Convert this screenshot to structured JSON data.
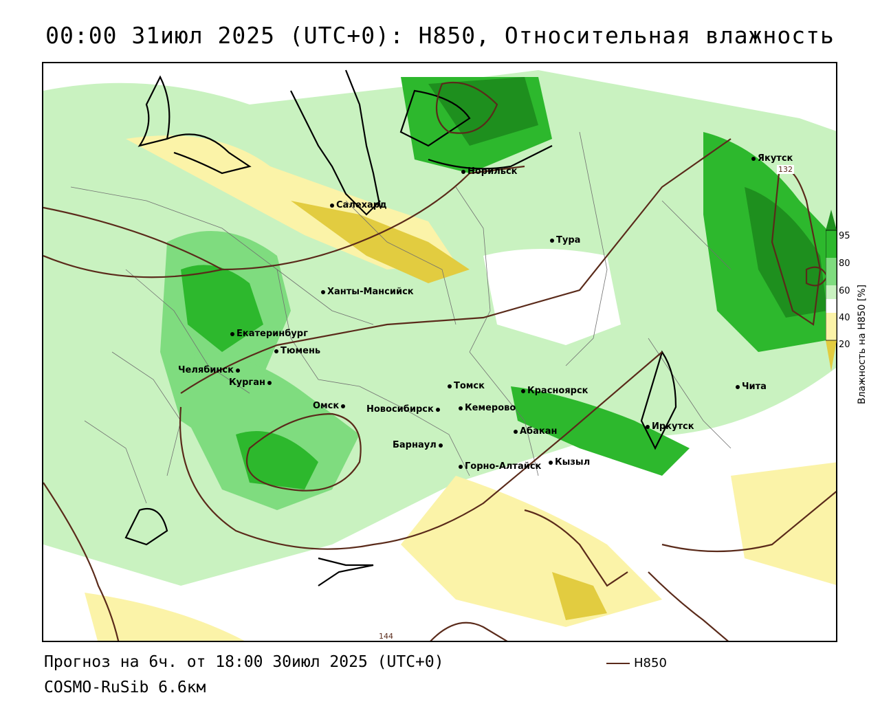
{
  "title": "00:00 31июл 2025 (UTC+0): H850, Относительная влажность",
  "footer": {
    "forecast": "Прогноз на 6ч. от 18:00 30июл 2025 (UTC+0)",
    "model": "COSMO-RuSib 6.6км"
  },
  "legend": {
    "h850_label": "H850"
  },
  "colorbar": {
    "title": "Влажность на H850 [%]",
    "ticks": [
      "95",
      "80",
      "60",
      "40",
      "20"
    ],
    "colors": {
      "over95": "#1e8f1e",
      "c80_95": "#2db82d",
      "c60_80": "#7fdc7f",
      "c50_60": "#c9f2c0",
      "c40_50": "#ffffff",
      "c20_40": "#fbf3a8",
      "under20": "#e2cc40"
    }
  },
  "contour_labels": [
    "132",
    "144"
  ],
  "cities": [
    {
      "name": "Якутск"
    },
    {
      "name": "Норильск"
    },
    {
      "name": "Салехард"
    },
    {
      "name": "Тура"
    },
    {
      "name": "Ханты-Мансийск"
    },
    {
      "name": "Екатеринбург"
    },
    {
      "name": "Тюмень"
    },
    {
      "name": "Челябинск"
    },
    {
      "name": "Курган"
    },
    {
      "name": "Омск"
    },
    {
      "name": "Новосибирск"
    },
    {
      "name": "Томск"
    },
    {
      "name": "Кемерово"
    },
    {
      "name": "Красноярск"
    },
    {
      "name": "Абакан"
    },
    {
      "name": "Барнаул"
    },
    {
      "name": "Горно-Алтайск"
    },
    {
      "name": "Кызыл"
    },
    {
      "name": "Иркутск"
    },
    {
      "name": "Чита"
    }
  ]
}
